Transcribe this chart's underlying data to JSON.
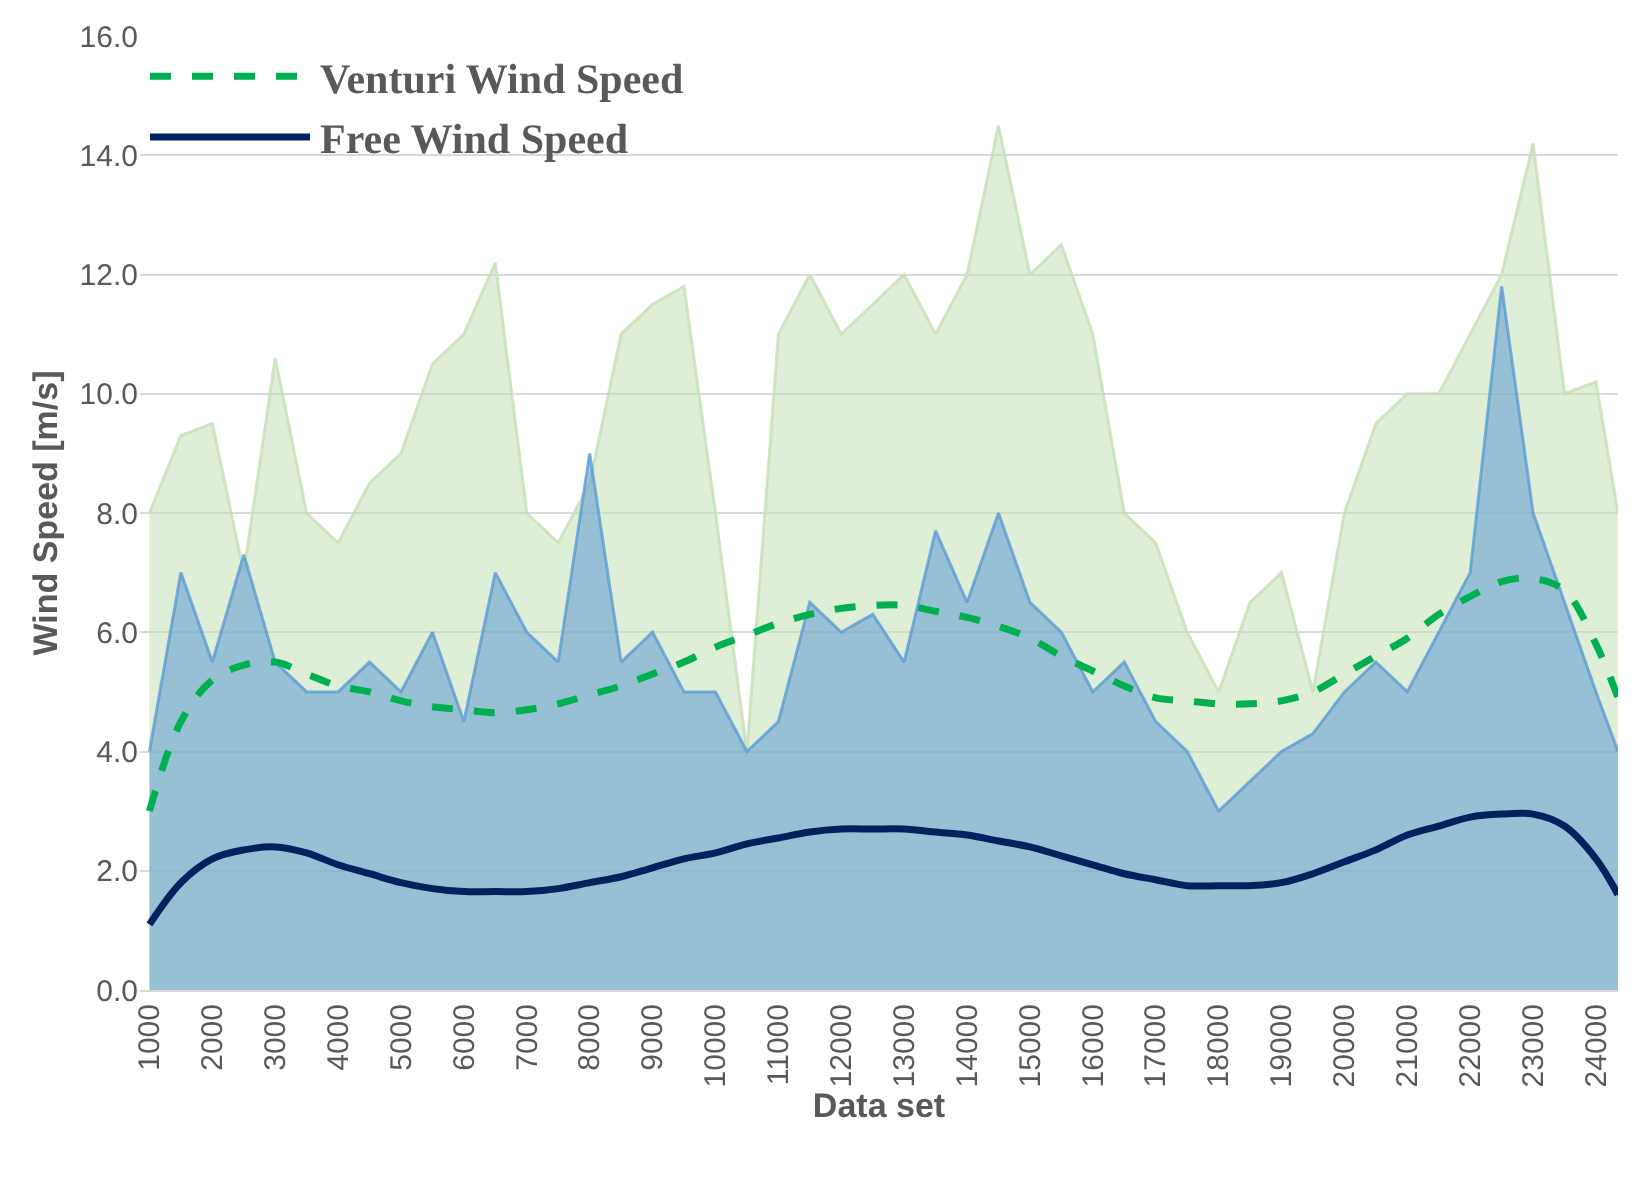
{
  "chart_data": {
    "type": "area",
    "xlabel": "Data set",
    "ylabel": "Wind Speed [m/s]",
    "xlim": [
      850,
      24350
    ],
    "xticks": [
      1000,
      2000,
      3000,
      4000,
      5000,
      6000,
      7000,
      8000,
      9000,
      10000,
      11000,
      12000,
      13000,
      14000,
      15000,
      16000,
      17000,
      18000,
      19000,
      20000,
      21000,
      22000,
      23000,
      24000
    ],
    "ylim": [
      0,
      16
    ],
    "yticks": [
      {
        "value": 0,
        "label": "0.0"
      },
      {
        "value": 2,
        "label": "2.0"
      },
      {
        "value": 4,
        "label": "4.0"
      },
      {
        "value": 6,
        "label": "6.0"
      },
      {
        "value": 8,
        "label": "8.0"
      },
      {
        "value": 10,
        "label": "10.0"
      },
      {
        "value": 12,
        "label": "12.0"
      },
      {
        "value": 14,
        "label": "14.0"
      },
      {
        "value": 16,
        "label": "16.0"
      }
    ],
    "grid": "y",
    "legend": "top left",
    "x": [
      1000,
      1500,
      2000,
      2500,
      3000,
      3500,
      4000,
      4500,
      5000,
      5500,
      6000,
      6500,
      7000,
      7500,
      8000,
      8500,
      9000,
      9500,
      10000,
      10500,
      11000,
      11500,
      12000,
      12500,
      13000,
      13500,
      14000,
      14500,
      15000,
      15500,
      16000,
      16500,
      17000,
      17500,
      18000,
      18500,
      19000,
      19500,
      20000,
      20500,
      21000,
      21500,
      22000,
      22500,
      23000,
      23500,
      24000,
      24350
    ],
    "series": [
      {
        "color": "#c5e0b4",
        "values": [
          8,
          9.3,
          9.5,
          7,
          10.6,
          8,
          7.5,
          8.5,
          9,
          10.5,
          11,
          12.2,
          8,
          7.5,
          8.5,
          11,
          11.5,
          11.8,
          8,
          4,
          11,
          12,
          11,
          11.5,
          12,
          11,
          12,
          14.5,
          12,
          12.5,
          11,
          8,
          7.5,
          6,
          5,
          6.5,
          7,
          5,
          8,
          9.5,
          10,
          10,
          11,
          12,
          14.2,
          10,
          10.2,
          8
        ]
      },
      {
        "color": "#5b9bd5",
        "values": [
          4,
          7,
          5.5,
          7.3,
          5.5,
          5,
          5,
          5.5,
          5,
          6,
          4.5,
          7,
          6,
          5.5,
          9,
          5.5,
          6,
          5,
          5,
          4,
          4.5,
          6.5,
          6,
          6.3,
          5.5,
          7.7,
          6.5,
          8,
          6.5,
          6,
          5,
          5.5,
          4.5,
          4,
          3,
          3.5,
          4,
          4.3,
          5,
          5.5,
          5,
          6,
          7,
          11.8,
          8,
          6.5,
          5,
          4
        ]
      },
      {
        "type": "line",
        "name": "Venturi Wind Speed",
        "color": "#00b050",
        "line_style": "dashed",
        "values": [
          3.0,
          4.5,
          5.2,
          5.45,
          5.5,
          5.3,
          5.1,
          5.0,
          4.85,
          4.75,
          4.7,
          4.65,
          4.7,
          4.8,
          4.95,
          5.1,
          5.3,
          5.5,
          5.75,
          5.95,
          6.15,
          6.3,
          6.4,
          6.45,
          6.45,
          6.35,
          6.25,
          6.1,
          5.9,
          5.6,
          5.35,
          5.1,
          4.9,
          4.85,
          4.8,
          4.8,
          4.85,
          5.0,
          5.3,
          5.6,
          5.9,
          6.3,
          6.6,
          6.85,
          6.9,
          6.7,
          5.8,
          4.9
        ]
      },
      {
        "type": "line",
        "name": "Free Wind Speed",
        "color": "#002060",
        "line_style": "solid",
        "values": [
          1.1,
          1.8,
          2.2,
          2.35,
          2.4,
          2.3,
          2.1,
          1.95,
          1.8,
          1.7,
          1.65,
          1.65,
          1.65,
          1.7,
          1.8,
          1.9,
          2.05,
          2.2,
          2.3,
          2.45,
          2.55,
          2.65,
          2.7,
          2.7,
          2.7,
          2.65,
          2.6,
          2.5,
          2.4,
          2.25,
          2.1,
          1.95,
          1.85,
          1.75,
          1.75,
          1.75,
          1.8,
          1.95,
          2.15,
          2.35,
          2.6,
          2.75,
          2.9,
          2.95,
          2.95,
          2.75,
          2.2,
          1.6
        ]
      }
    ]
  }
}
